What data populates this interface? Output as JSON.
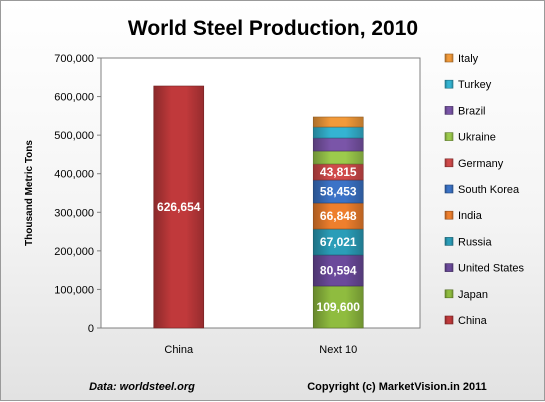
{
  "chart_data": {
    "type": "bar",
    "stacked": true,
    "title": "World Steel Production, 2010",
    "ylabel": "Thousand Metric Tons",
    "xlabel": "",
    "ylim": [
      0,
      700000
    ],
    "yticks": [
      "0",
      "100,000",
      "200,000",
      "300,000",
      "400,000",
      "500,000",
      "600,000",
      "700,000"
    ],
    "grid": false,
    "legend_position": "right",
    "categories": [
      "China",
      "Next 10"
    ],
    "series": [
      {
        "name": "China",
        "color": "#c0393b",
        "values": [
          626654,
          0
        ],
        "labels": [
          "626,654",
          ""
        ]
      },
      {
        "name": "Japan",
        "color": "#8fbc3f",
        "values": [
          0,
          109600
        ],
        "labels": [
          "",
          "109,600"
        ]
      },
      {
        "name": "United States",
        "color": "#6b4a9b",
        "values": [
          0,
          80594
        ],
        "labels": [
          "",
          "80,594"
        ]
      },
      {
        "name": "Russia",
        "color": "#2a9db8",
        "values": [
          0,
          67021
        ],
        "labels": [
          "",
          "67,021"
        ]
      },
      {
        "name": "India",
        "color": "#ee7f2d",
        "values": [
          0,
          66848
        ],
        "labels": [
          "",
          "66,848"
        ]
      },
      {
        "name": "South Korea",
        "color": "#3b73c7",
        "values": [
          0,
          58453
        ],
        "labels": [
          "",
          "58,453"
        ]
      },
      {
        "name": "Germany",
        "color": "#d04a4a",
        "values": [
          0,
          43815
        ],
        "labels": [
          "",
          "43,815"
        ]
      },
      {
        "name": "Ukraine",
        "color": "#9ccb4c",
        "values": [
          0,
          33400
        ],
        "labels": [
          "",
          ""
        ]
      },
      {
        "name": "Brazil",
        "color": "#7a55a8",
        "values": [
          0,
          32900
        ],
        "labels": [
          "",
          ""
        ]
      },
      {
        "name": "Turkey",
        "color": "#34b4d2",
        "values": [
          0,
          29100
        ],
        "labels": [
          "",
          ""
        ]
      },
      {
        "name": "Italy",
        "color": "#f29a3a",
        "values": [
          0,
          25700
        ],
        "labels": [
          "",
          ""
        ]
      }
    ]
  },
  "footer": {
    "source": "Data: worldsteel.org",
    "copyright": "Copyright (c) MarketVision.in 2011"
  }
}
